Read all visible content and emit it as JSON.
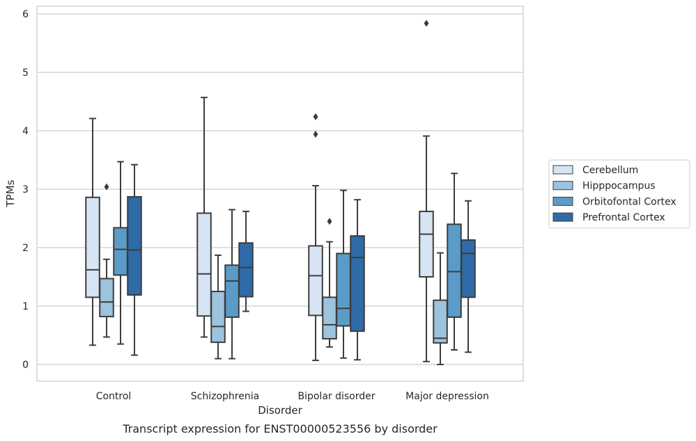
{
  "chart_data": {
    "type": "box",
    "title": "",
    "xlabel": "Disorder",
    "ylabel": "TPMs",
    "caption": "Transcript expression for ENST00000523556 by disorder",
    "ylim": [
      -0.28,
      6.13
    ],
    "yticks": [
      0,
      1,
      2,
      3,
      4,
      5,
      6
    ],
    "grid": true,
    "legend_position": "right",
    "categories": [
      "Control",
      "Schizophrenia",
      "Bipolar disorder",
      "Major depression"
    ],
    "series": [
      {
        "name": "Cerebellum",
        "color": "#d6e4f3",
        "boxes": [
          {
            "whisker_low": 0.33,
            "q1": 1.15,
            "median": 1.62,
            "q3": 2.86,
            "whisker_high": 4.21,
            "outliers": []
          },
          {
            "whisker_low": 0.47,
            "q1": 0.83,
            "median": 1.55,
            "q3": 2.59,
            "whisker_high": 4.57,
            "outliers": []
          },
          {
            "whisker_low": 0.07,
            "q1": 0.84,
            "median": 1.52,
            "q3": 2.03,
            "whisker_high": 3.06,
            "outliers": [
              3.94,
              4.24
            ]
          },
          {
            "whisker_low": 0.05,
            "q1": 1.5,
            "median": 2.23,
            "q3": 2.62,
            "whisker_high": 3.91,
            "outliers": [
              5.84
            ]
          }
        ]
      },
      {
        "name": "Hipppocampus",
        "color": "#9dc3dd",
        "boxes": [
          {
            "whisker_low": 0.47,
            "q1": 0.82,
            "median": 1.07,
            "q3": 1.47,
            "whisker_high": 1.8,
            "outliers": [
              3.04
            ]
          },
          {
            "whisker_low": 0.1,
            "q1": 0.38,
            "median": 0.65,
            "q3": 1.25,
            "whisker_high": 1.87,
            "outliers": []
          },
          {
            "whisker_low": 0.3,
            "q1": 0.44,
            "median": 0.68,
            "q3": 1.15,
            "whisker_high": 2.1,
            "outliers": [
              2.45
            ]
          },
          {
            "whisker_low": 0.0,
            "q1": 0.37,
            "median": 0.45,
            "q3": 1.1,
            "whisker_high": 1.91,
            "outliers": []
          }
        ]
      },
      {
        "name": "Orbitofontal Cortex",
        "color": "#5b9bc8",
        "boxes": [
          {
            "whisker_low": 0.35,
            "q1": 1.53,
            "median": 1.97,
            "q3": 2.34,
            "whisker_high": 3.47,
            "outliers": []
          },
          {
            "whisker_low": 0.1,
            "q1": 0.81,
            "median": 1.43,
            "q3": 1.7,
            "whisker_high": 2.65,
            "outliers": []
          },
          {
            "whisker_low": 0.11,
            "q1": 0.66,
            "median": 0.96,
            "q3": 1.9,
            "whisker_high": 2.98,
            "outliers": []
          },
          {
            "whisker_low": 0.25,
            "q1": 0.81,
            "median": 1.59,
            "q3": 2.4,
            "whisker_high": 3.27,
            "outliers": []
          }
        ]
      },
      {
        "name": "Prefrontal Cortex",
        "color": "#2e6ba8",
        "boxes": [
          {
            "whisker_low": 0.16,
            "q1": 1.19,
            "median": 1.96,
            "q3": 2.87,
            "whisker_high": 3.42,
            "outliers": []
          },
          {
            "whisker_low": 0.91,
            "q1": 1.16,
            "median": 1.66,
            "q3": 2.08,
            "whisker_high": 2.62,
            "outliers": []
          },
          {
            "whisker_low": 0.08,
            "q1": 0.57,
            "median": 1.83,
            "q3": 2.2,
            "whisker_high": 2.82,
            "outliers": []
          },
          {
            "whisker_low": 0.21,
            "q1": 1.15,
            "median": 1.9,
            "q3": 2.13,
            "whisker_high": 2.8,
            "outliers": []
          }
        ]
      }
    ]
  }
}
